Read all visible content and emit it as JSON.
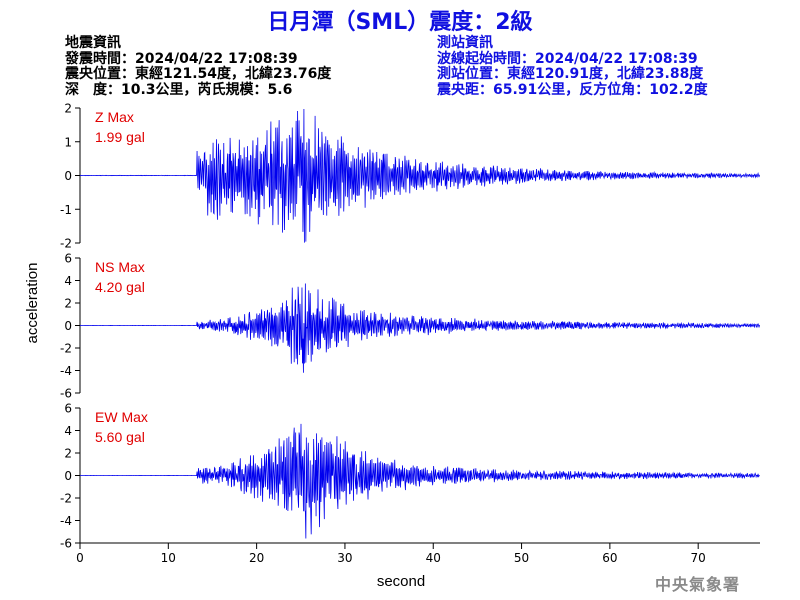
{
  "title": "日月潭（SML）震度：2級",
  "quake_info": {
    "heading": "地震資訊",
    "origin_time": "發震時間：2024/04/22 17:08:39",
    "epicenter": "震央位置：東經121.54度，北緯23.76度",
    "depth_magnitude": "深　度：10.3公里，芮氏規模：5.6"
  },
  "station_info": {
    "heading": "測站資訊",
    "wave_start": "波線起始時間：2024/04/22 17:08:39",
    "station_location": "測站位置：東經120.91度，北緯23.88度",
    "distance_azimuth": "震央距：65.91公里，反方位角：102.2度"
  },
  "agency": "中央氣象署",
  "colors": {
    "title": "#1010e0",
    "trace": "#0000ee",
    "max_label": "#e00000",
    "axis": "#000000"
  },
  "chart_data": [
    {
      "type": "line",
      "component": "Z",
      "max_label": "Z Max",
      "max_value": "1.99 gal",
      "peak": 1.99,
      "ylim": [
        -2,
        2
      ],
      "yticks": [
        -2,
        -1,
        0,
        1,
        2
      ],
      "xlim": [
        0,
        77
      ],
      "xticks": [],
      "xlabel": "",
      "ylabel": "",
      "onset_s": 13.2,
      "peak_time_s": 25.4,
      "duration_s": 77,
      "envelope": [
        [
          13,
          0.55
        ],
        [
          15,
          1.2
        ],
        [
          18,
          1.05
        ],
        [
          21,
          1.3
        ],
        [
          25.3,
          1.75
        ],
        [
          28,
          1.2
        ],
        [
          31,
          0.95
        ],
        [
          36,
          0.55
        ],
        [
          42,
          0.35
        ],
        [
          52,
          0.18
        ],
        [
          60,
          0.1
        ],
        [
          77,
          0.05
        ]
      ]
    },
    {
      "type": "line",
      "component": "NS",
      "max_label": "NS Max",
      "max_value": "4.20 gal",
      "peak": 4.2,
      "ylim": [
        -6,
        6
      ],
      "yticks": [
        -6,
        -4,
        -2,
        0,
        2,
        4,
        6
      ],
      "xlim": [
        0,
        77
      ],
      "xticks": [],
      "xlabel": "",
      "ylabel": "acceleration",
      "onset_s": 13.2,
      "peak_time_s": 25.3,
      "duration_s": 77,
      "envelope": [
        [
          13,
          0.35
        ],
        [
          16,
          0.5
        ],
        [
          19,
          1.1
        ],
        [
          22,
          1.9
        ],
        [
          25.3,
          3.6
        ],
        [
          28,
          2.3
        ],
        [
          31,
          1.5
        ],
        [
          35,
          1.0
        ],
        [
          40,
          0.7
        ],
        [
          48,
          0.4
        ],
        [
          58,
          0.3
        ],
        [
          77,
          0.15
        ]
      ]
    },
    {
      "type": "line",
      "component": "EW",
      "max_label": "EW Max",
      "max_value": "5.60 gal",
      "peak": 5.6,
      "ylim": [
        -6,
        6
      ],
      "yticks": [
        -6,
        -4,
        -2,
        0,
        2,
        4,
        6
      ],
      "xlim": [
        0,
        77
      ],
      "xticks": [
        0,
        10,
        20,
        30,
        40,
        50,
        60,
        70
      ],
      "xlabel": "second",
      "ylabel": "",
      "onset_s": 13.2,
      "peak_time_s": 25.6,
      "duration_s": 77,
      "envelope": [
        [
          13,
          0.6
        ],
        [
          16,
          0.8
        ],
        [
          19,
          1.5
        ],
        [
          22,
          2.6
        ],
        [
          25.5,
          4.8
        ],
        [
          28,
          3.4
        ],
        [
          31,
          2.2
        ],
        [
          35,
          1.3
        ],
        [
          40,
          0.8
        ],
        [
          48,
          0.45
        ],
        [
          58,
          0.3
        ],
        [
          77,
          0.2
        ]
      ]
    }
  ]
}
